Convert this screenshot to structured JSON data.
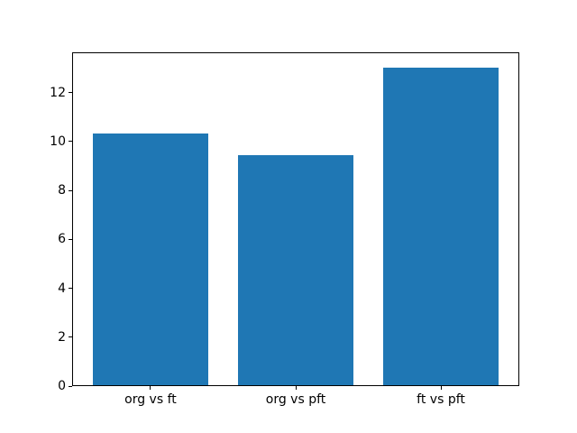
{
  "figure": {
    "background": "#ffffff",
    "spine_color": "#000000",
    "tick_label_color": "#000000"
  },
  "chart_data": {
    "type": "bar",
    "title": "",
    "xlabel": "",
    "ylabel": "",
    "categories": [
      "org vs ft",
      "org vs pft",
      "ft vs pft"
    ],
    "values": [
      10.3,
      9.4,
      13.0
    ],
    "yticks": [
      0,
      2,
      4,
      6,
      8,
      10,
      12
    ],
    "ylim": [
      0,
      13.65
    ],
    "xlim": [
      -0.54,
      2.54
    ],
    "bar_width_units": 0.8,
    "bar_color": "#1f77b4",
    "grid": false,
    "legend": null
  }
}
